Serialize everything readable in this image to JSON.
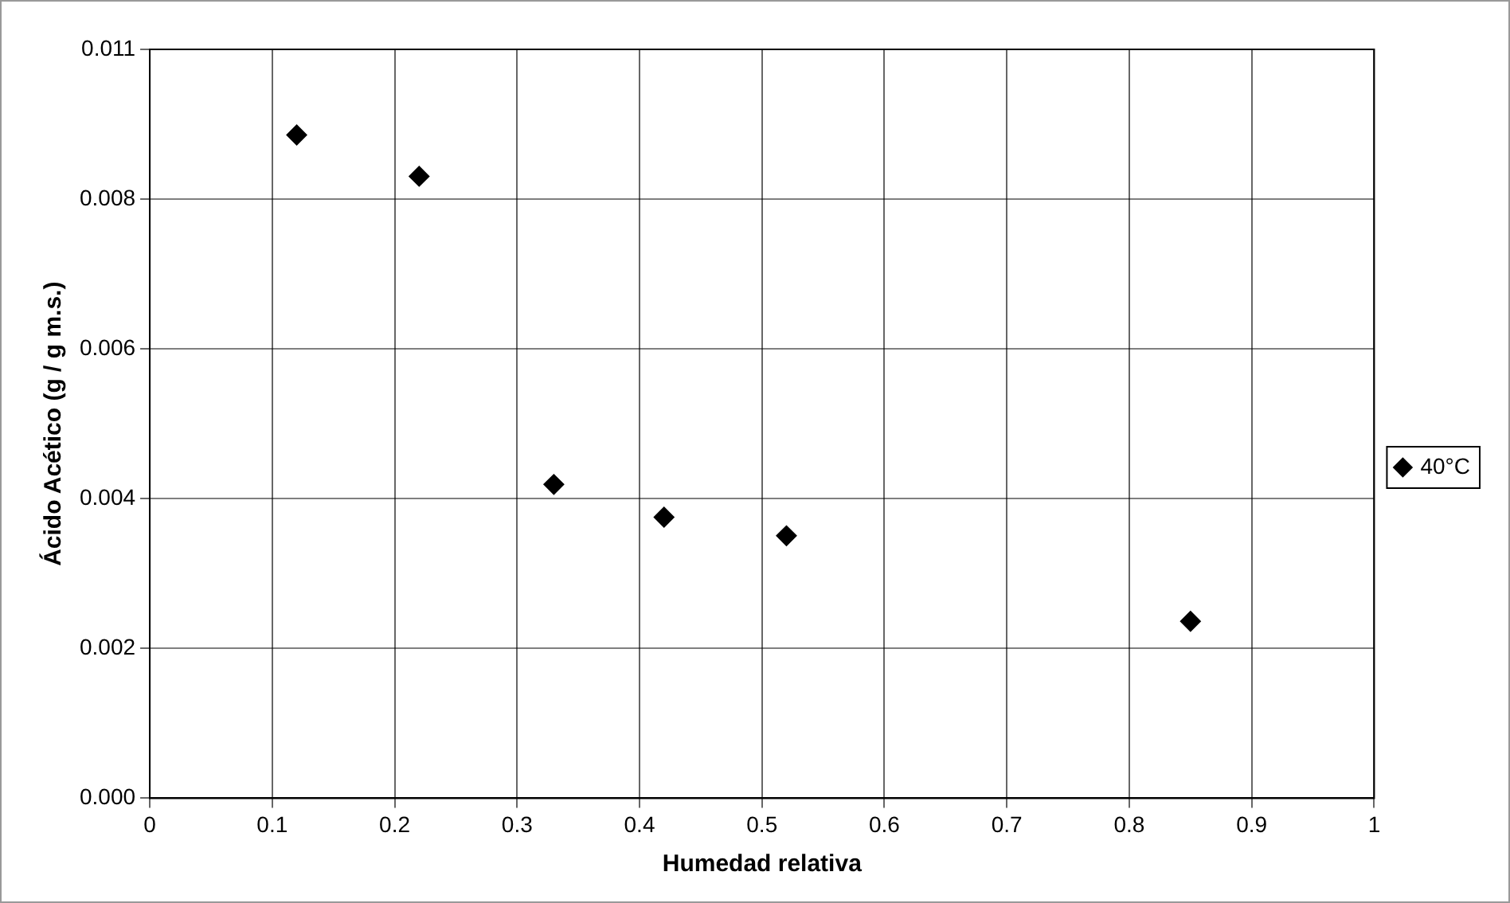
{
  "chart_data": {
    "type": "scatter",
    "xlabel": "Humedad relativa",
    "ylabel": "Ácido Acético (g / g m.s.)",
    "x": [
      0.12,
      0.22,
      0.33,
      0.42,
      0.52,
      0.85
    ],
    "series": [
      {
        "name": "40°C",
        "color": "#000000",
        "values": [
          0.0093,
          0.00872,
          0.0044,
          0.00394,
          0.00368,
          0.00248
        ]
      }
    ],
    "xlim": [
      0,
      1
    ],
    "xticks": [
      0,
      0.1,
      0.2,
      0.3,
      0.4,
      0.5,
      0.6,
      0.7,
      0.8,
      0.9,
      1
    ],
    "ylim": [
      0,
      0.0105
    ],
    "yticks": [
      {
        "value": 0,
        "label": "0.000"
      },
      {
        "value": 0.0021,
        "label": "0.002"
      },
      {
        "value": 0.0042,
        "label": "0.004"
      },
      {
        "value": 0.0063,
        "label": "0.006"
      },
      {
        "value": 0.0084,
        "label": "0.008"
      },
      {
        "value": 0.0105,
        "label": "0.011"
      }
    ],
    "grid": true,
    "legend": "right",
    "marker": "diamond"
  }
}
